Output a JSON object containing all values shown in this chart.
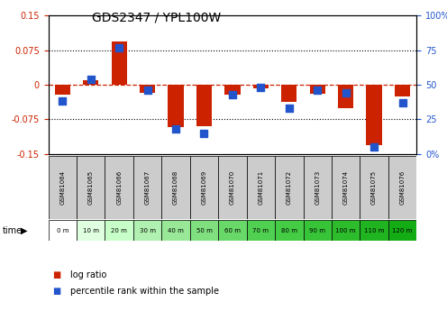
{
  "title": "GDS2347 / YPL100W",
  "samples": [
    "GSM81064",
    "GSM81065",
    "GSM81066",
    "GSM81067",
    "GSM81068",
    "GSM81069",
    "GSM81070",
    "GSM81071",
    "GSM81072",
    "GSM81073",
    "GSM81074",
    "GSM81075",
    "GSM81076"
  ],
  "times": [
    "0 m",
    "10 m",
    "20 m",
    "30 m",
    "40 m",
    "50 m",
    "60 m",
    "70 m",
    "80 m",
    "90 m",
    "100 m",
    "110 m",
    "120 m"
  ],
  "log_ratio": [
    -0.022,
    0.01,
    0.093,
    -0.018,
    -0.092,
    -0.09,
    -0.022,
    -0.008,
    -0.038,
    -0.02,
    -0.05,
    -0.13,
    -0.025
  ],
  "percentile": [
    38,
    54,
    77,
    46,
    18,
    15,
    43,
    48,
    33,
    46,
    44,
    5,
    37
  ],
  "bar_color": "#cc2200",
  "dot_color": "#2255cc",
  "ylim_left": [
    -0.15,
    0.15
  ],
  "ylim_right": [
    0,
    100
  ],
  "yticks_left": [
    -0.15,
    -0.075,
    0,
    0.075,
    0.15
  ],
  "yticks_right": [
    0,
    25,
    50,
    75,
    100
  ],
  "ytick_labels_left": [
    "-0.15",
    "-0.075",
    "0",
    "0.075",
    "0.15"
  ],
  "ytick_labels_right": [
    "0%",
    "25",
    "50",
    "75",
    "100%"
  ],
  "zero_line_color": "#cc2200",
  "grid_color": "#000000",
  "sample_bg_color": "#cccccc",
  "time_row_colors": [
    "#ffffff",
    "#e0ffe0",
    "#c8ffc8",
    "#b0f0b0",
    "#98e898",
    "#80e080",
    "#68d868",
    "#50d050",
    "#44cc44",
    "#38c438",
    "#2cbc2c",
    "#20b420",
    "#14ac14"
  ],
  "bar_width": 0.55,
  "dot_size": 28
}
